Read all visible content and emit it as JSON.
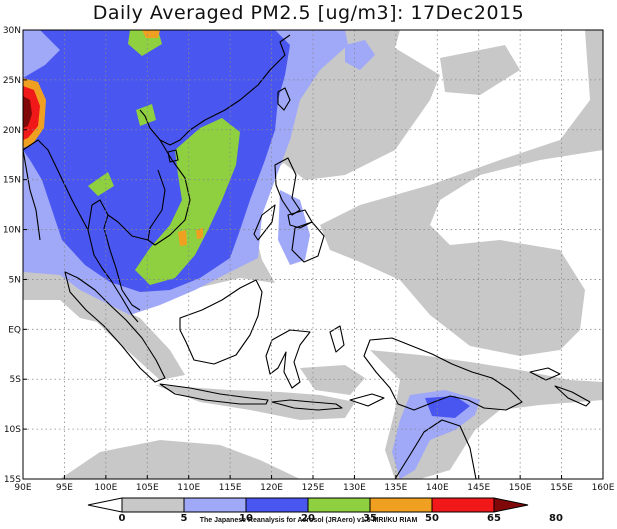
{
  "title": "Daily Averaged PM2.5 [ug/m3]: 17Dec2015",
  "map": {
    "lon_range": [
      90,
      160
    ],
    "lat_range": [
      -15,
      30
    ],
    "lon_ticks": [
      90,
      95,
      100,
      105,
      110,
      115,
      120,
      125,
      130,
      135,
      140,
      145,
      150,
      155,
      160
    ],
    "lat_ticks": [
      -15,
      -10,
      -5,
      0,
      5,
      10,
      15,
      20,
      25,
      30
    ],
    "lon_labels": [
      "90E",
      "95E",
      "100E",
      "105E",
      "110E",
      "115E",
      "120E",
      "125E",
      "130E",
      "135E",
      "140E",
      "145E",
      "150E",
      "155E",
      "160E"
    ],
    "lat_labels": [
      "15S",
      "10S",
      "5S",
      "EQ",
      "5N",
      "10N",
      "15N",
      "20N",
      "25N",
      "30N"
    ],
    "grid": true
  },
  "colorbar": {
    "boundaries": [
      "0",
      "5",
      "10",
      "20",
      "35",
      "50",
      "65",
      "80"
    ],
    "colors": [
      "#ffffff",
      "#c8c8c8",
      "#a0a8f8",
      "#4a56f0",
      "#8fd040",
      "#f0a020",
      "#f01818",
      "#800808"
    ]
  },
  "credit": "The Japanese Reanalysis for Aerosol (JRAero) v1.0 MRI/KU RIAM"
}
